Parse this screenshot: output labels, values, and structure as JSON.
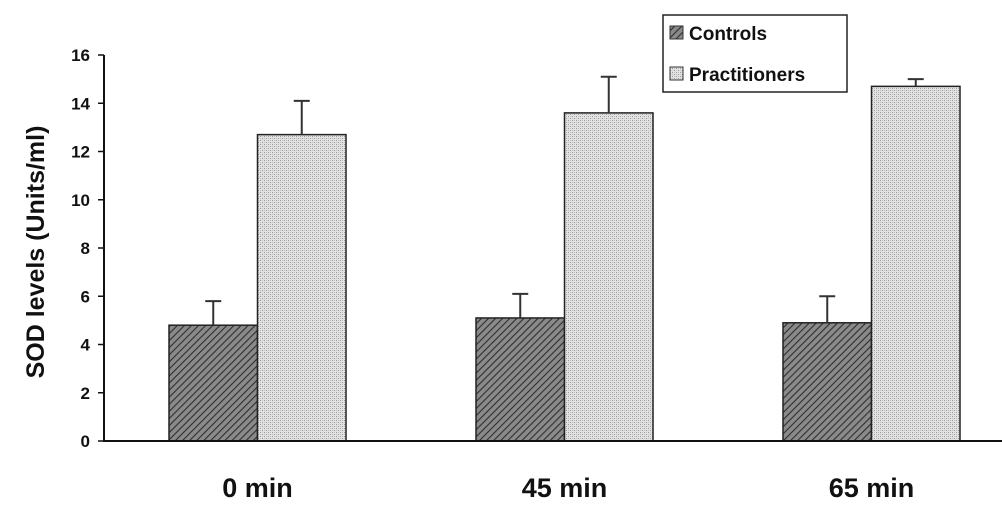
{
  "chart_data": {
    "type": "bar",
    "title": "",
    "xlabel": "",
    "ylabel": "SOD levels (Units/ml)",
    "ylim": [
      0,
      16
    ],
    "yticks": [
      0,
      2,
      4,
      6,
      8,
      10,
      12,
      14,
      16
    ],
    "grid": false,
    "legend_position": "top-right",
    "categories": [
      "0 min",
      "45 min",
      "65 min"
    ],
    "series": [
      {
        "name": "Controls",
        "pattern": "dense diagonal hatch (dark)",
        "color": "#6b6b6b",
        "values": [
          4.8,
          5.1,
          4.9
        ],
        "error_upper": [
          1.0,
          1.0,
          1.1
        ]
      },
      {
        "name": "Practitioners",
        "pattern": "fine crosshatch (light)",
        "color": "#d4d4d4",
        "values": [
          12.7,
          13.6,
          14.7
        ],
        "error_upper": [
          1.4,
          1.5,
          0.3
        ]
      }
    ]
  },
  "legend": {
    "items": [
      {
        "label": "Controls"
      },
      {
        "label": "Practitioners"
      }
    ]
  }
}
